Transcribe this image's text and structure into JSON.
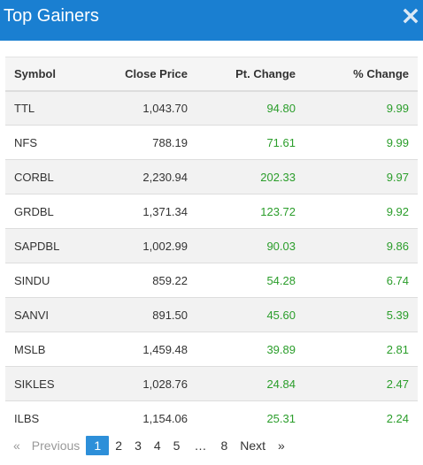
{
  "header": {
    "title": "Top Gainers",
    "close_icon": "close-icon"
  },
  "table": {
    "columns": [
      "Symbol",
      "Close Price",
      "Pt. Change",
      "% Change"
    ],
    "rows": [
      {
        "symbol": "TTL",
        "close": "1,043.70",
        "pt": "94.80",
        "pct": "9.99"
      },
      {
        "symbol": "NFS",
        "close": "788.19",
        "pt": "71.61",
        "pct": "9.99"
      },
      {
        "symbol": "CORBL",
        "close": "2,230.94",
        "pt": "202.33",
        "pct": "9.97"
      },
      {
        "symbol": "GRDBL",
        "close": "1,371.34",
        "pt": "123.72",
        "pct": "9.92"
      },
      {
        "symbol": "SAPDBL",
        "close": "1,002.99",
        "pt": "90.03",
        "pct": "9.86"
      },
      {
        "symbol": "SINDU",
        "close": "859.22",
        "pt": "54.28",
        "pct": "6.74"
      },
      {
        "symbol": "SANVI",
        "close": "891.50",
        "pt": "45.60",
        "pct": "5.39"
      },
      {
        "symbol": "MSLB",
        "close": "1,459.48",
        "pt": "39.89",
        "pct": "2.81"
      },
      {
        "symbol": "SIKLES",
        "close": "1,028.76",
        "pt": "24.84",
        "pct": "2.47"
      },
      {
        "symbol": "ILBS",
        "close": "1,154.06",
        "pt": "25.31",
        "pct": "2.24"
      }
    ]
  },
  "pagination": {
    "first": "«",
    "previous": "Previous",
    "pages": [
      "1",
      "2",
      "3",
      "4",
      "5"
    ],
    "ellipsis": "…",
    "last_page": "8",
    "next": "Next",
    "last": "»",
    "current": "1"
  },
  "colors": {
    "header_bg": "#1a7fd1",
    "positive": "#2a9d2a",
    "active_page": "#2d8fd9"
  }
}
